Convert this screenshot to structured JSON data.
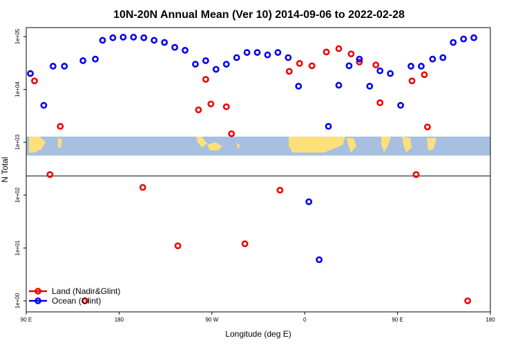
{
  "chart_data": {
    "type": "scatter",
    "title": "10N-20N Annual Mean (Ver 10)   2014-09-06 to 2022-02-28",
    "xlabel": "Longitude (deg E)",
    "ylabel": "N Total",
    "x_scale": "longitude, 90 E to 180 and back around to 180",
    "y_scale": "log",
    "x_ticks": [
      {
        "pos": 90,
        "label": "90 E"
      },
      {
        "pos": 180,
        "label": "180"
      },
      {
        "pos": 270,
        "label": "90 W"
      },
      {
        "pos": 360,
        "label": "0"
      },
      {
        "pos": 450,
        "label": "90 E"
      },
      {
        "pos": 540,
        "label": "180"
      }
    ],
    "y_ticks": [
      {
        "value": 1,
        "label": "1e+00"
      },
      {
        "value": 10,
        "label": "1e+01"
      },
      {
        "value": 100,
        "label": "1e+02"
      },
      {
        "value": 1000,
        "label": "1e+03"
      },
      {
        "value": 10000,
        "label": "1e+04"
      },
      {
        "value": 100000,
        "label": "1e+05"
      }
    ],
    "xlim": [
      90,
      540
    ],
    "ylim": [
      0.85,
      130000
    ],
    "map_strip": {
      "lat_range": "10N-20N",
      "y_range": [
        560,
        1280
      ],
      "ocean_color": "#a7bfe0",
      "land_color": "#fde07a"
    },
    "legend": {
      "placement": "bottom-left"
    },
    "series": [
      {
        "name": "Land (Nadir&Glint)",
        "color": "#ee0000",
        "points": [
          [
            98,
            14500
          ],
          [
            113,
            245
          ],
          [
            123,
            2000
          ],
          [
            147,
            1
          ],
          [
            203,
            140
          ],
          [
            237,
            11
          ],
          [
            257,
            4100
          ],
          [
            264,
            15500
          ],
          [
            269,
            5300
          ],
          [
            284,
            4700
          ],
          [
            289,
            1450
          ],
          [
            302,
            12
          ],
          [
            336,
            124
          ],
          [
            345,
            22000
          ],
          [
            355,
            31000
          ],
          [
            367,
            28000
          ],
          [
            381,
            51000
          ],
          [
            393,
            59000
          ],
          [
            405,
            47000
          ],
          [
            413,
            33000
          ],
          [
            429,
            29000
          ],
          [
            433,
            5600
          ],
          [
            464,
            14500
          ],
          [
            468,
            245
          ],
          [
            476,
            19000
          ],
          [
            479,
            1950
          ],
          [
            518,
            1
          ]
        ]
      },
      {
        "name": "Ocean (Glint)",
        "color": "#0000ee",
        "points": [
          [
            94,
            20000
          ],
          [
            107,
            5000
          ],
          [
            116,
            27500
          ],
          [
            127,
            27500
          ],
          [
            145,
            35000
          ],
          [
            157,
            37500
          ],
          [
            164,
            85000
          ],
          [
            174,
            95000
          ],
          [
            184,
            97500
          ],
          [
            194,
            97500
          ],
          [
            204,
            95000
          ],
          [
            214,
            85000
          ],
          [
            224,
            77500
          ],
          [
            234,
            62500
          ],
          [
            244,
            55000
          ],
          [
            254,
            30000
          ],
          [
            264,
            35000
          ],
          [
            274,
            24000
          ],
          [
            284,
            30000
          ],
          [
            294,
            40000
          ],
          [
            304,
            50000
          ],
          [
            314,
            50000
          ],
          [
            324,
            45000
          ],
          [
            334,
            50000
          ],
          [
            344,
            40000
          ],
          [
            354,
            11500
          ],
          [
            364,
            75
          ],
          [
            374,
            6
          ],
          [
            383,
            2000
          ],
          [
            393,
            12000
          ],
          [
            403,
            28000
          ],
          [
            413,
            37500
          ],
          [
            423,
            11500
          ],
          [
            433,
            22500
          ],
          [
            443,
            20000
          ],
          [
            453,
            5000
          ],
          [
            463,
            27500
          ],
          [
            473,
            27500
          ],
          [
            484,
            37500
          ],
          [
            494,
            40000
          ],
          [
            504,
            77500
          ],
          [
            514,
            90000
          ],
          [
            524,
            95000
          ]
        ]
      }
    ]
  }
}
